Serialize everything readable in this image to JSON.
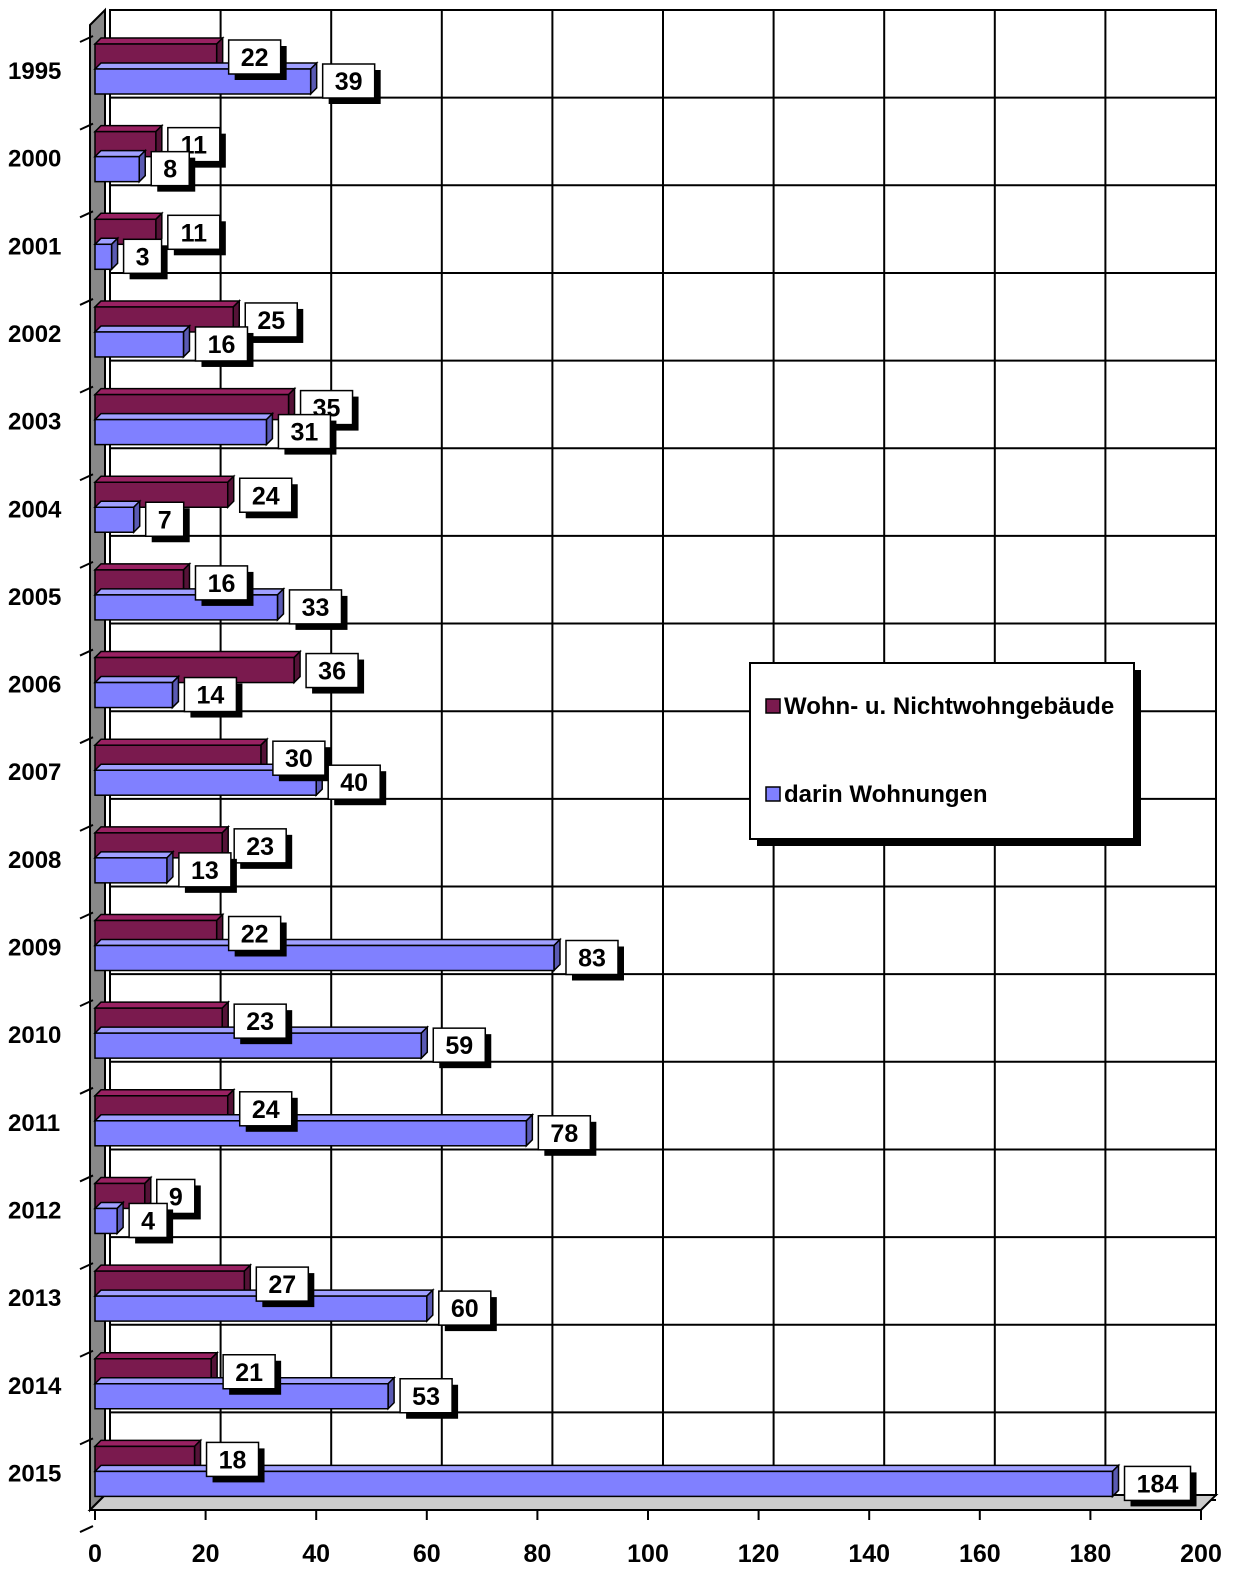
{
  "chart_data": {
    "type": "bar",
    "orientation": "horizontal",
    "style": "3d",
    "categories": [
      "1995",
      "2000",
      "2001",
      "2002",
      "2003",
      "2004",
      "2005",
      "2006",
      "2007",
      "2008",
      "2009",
      "2010",
      "2011",
      "2012",
      "2013",
      "2014",
      "2015"
    ],
    "series": [
      {
        "name": "Wohn- u. Nichtwohngebäude",
        "color": "#7a1a4e",
        "values": [
          22,
          11,
          11,
          25,
          35,
          24,
          16,
          36,
          30,
          23,
          22,
          23,
          24,
          9,
          27,
          21,
          18
        ]
      },
      {
        "name": "darin Wohnungen",
        "color": "#8080ff",
        "values": [
          39,
          8,
          3,
          16,
          31,
          7,
          33,
          14,
          40,
          13,
          83,
          59,
          78,
          4,
          60,
          53,
          184
        ]
      }
    ],
    "xlim": [
      0,
      200
    ],
    "xticks": [
      "0",
      "20",
      "40",
      "60",
      "80",
      "100",
      "120",
      "140",
      "160",
      "180",
      "200"
    ],
    "grid": true,
    "legend_position": "right"
  }
}
